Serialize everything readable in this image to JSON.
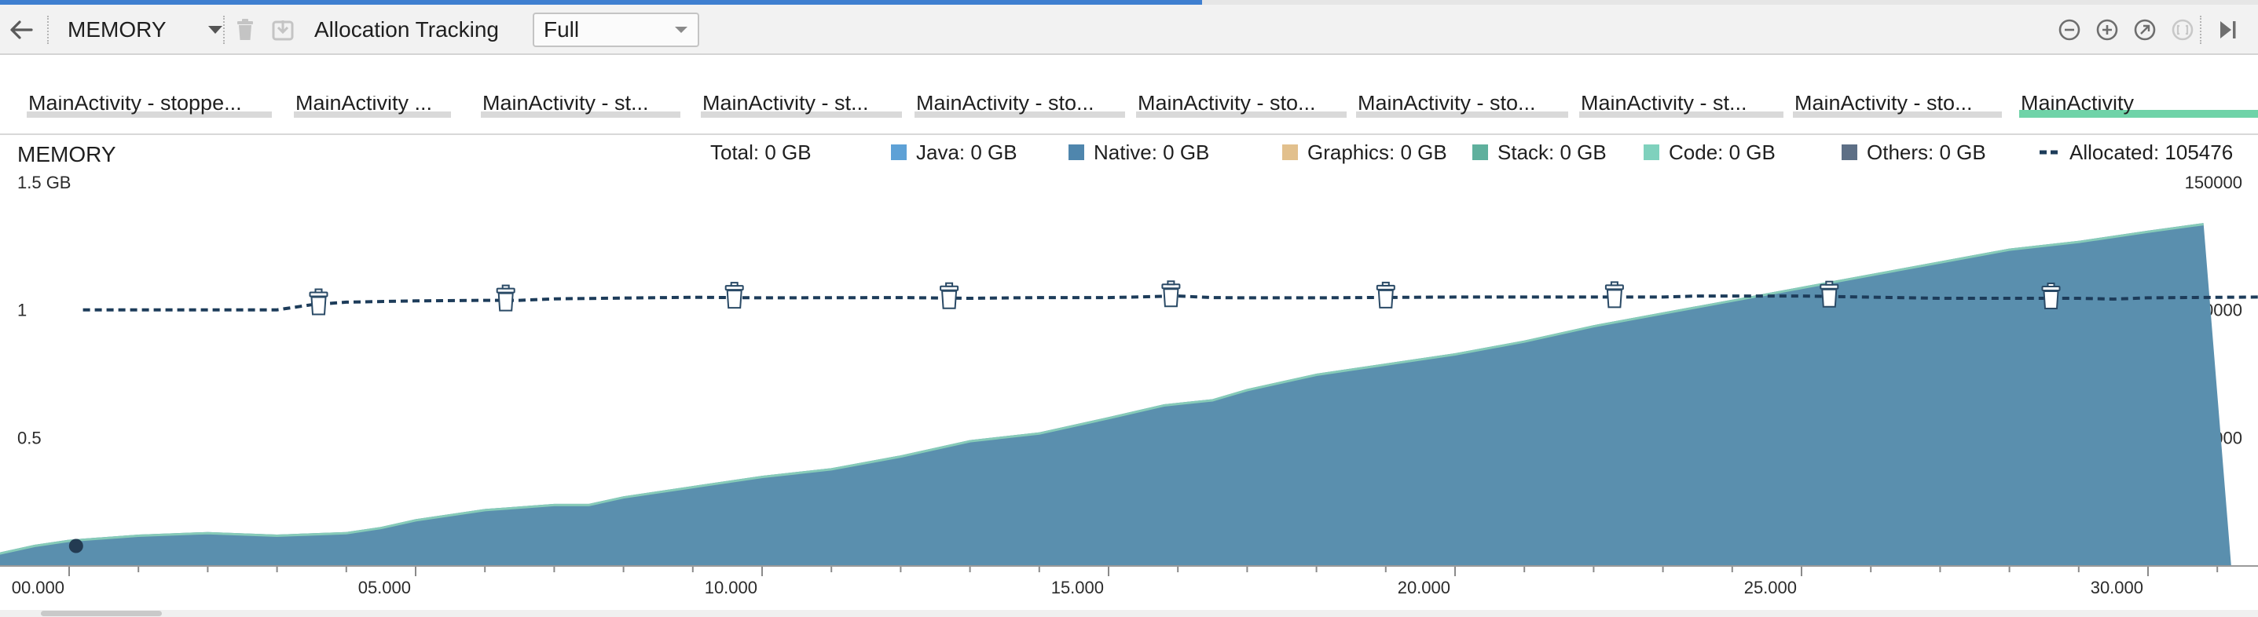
{
  "toolbar": {
    "profiler_label": "MEMORY",
    "allocation_label": "Allocation Tracking",
    "allocation_value": "Full"
  },
  "events": [
    "MainActivity - stoppe...",
    "MainActivity ...",
    "MainActivity - st...",
    "MainActivity - st...",
    "MainActivity - sto...",
    "MainActivity - sto...",
    "MainActivity - sto...",
    "MainActivity - st...",
    "MainActivity - sto...",
    "MainActivity"
  ],
  "colors": {
    "java": "#5ea1d6",
    "native": "#4f86ad",
    "graphics": "#e2c08d",
    "stack": "#5fb09d",
    "code": "#7fd1bd",
    "others": "#5d6f86",
    "allocated": "#1d3c5a",
    "area_fill": "#5a8fae",
    "area_edge": "#86cbb8"
  },
  "chart_data": {
    "type": "area",
    "title": "MEMORY",
    "legend": [
      {
        "name": "Total",
        "text": "Total: 0 GB",
        "icon": "none"
      },
      {
        "name": "Java",
        "text": "Java: 0 GB",
        "icon": "java"
      },
      {
        "name": "Native",
        "text": "Native: 0 GB",
        "icon": "native"
      },
      {
        "name": "Graphics",
        "text": "Graphics: 0 GB",
        "icon": "graphics"
      },
      {
        "name": "Stack",
        "text": "Stack: 0 GB",
        "icon": "stack"
      },
      {
        "name": "Code",
        "text": "Code: 0 GB",
        "icon": "code"
      },
      {
        "name": "Others",
        "text": "Others: 0 GB",
        "icon": "others"
      },
      {
        "name": "Allocated",
        "text": "Allocated: 105476",
        "icon": "dash"
      }
    ],
    "legend_placement": "top",
    "xlim": [
      -1.0,
      32.0
    ],
    "x_ticks": [
      "00.000",
      "05.000",
      "10.000",
      "15.000",
      "20.000",
      "25.000",
      "30.000"
    ],
    "x_tick_values": [
      0,
      5,
      10,
      15,
      20,
      25,
      30
    ],
    "y_left": {
      "ylim": [
        0,
        1.5
      ],
      "ticks": [
        {
          "value": 1.5,
          "label": "1.5 GB"
        },
        {
          "value": 1.0,
          "label": "1"
        },
        {
          "value": 0.5,
          "label": "0.5"
        }
      ]
    },
    "y_right": {
      "ylim": [
        0,
        150000
      ],
      "ticks": [
        {
          "value": 150000,
          "label": "150000"
        },
        {
          "value": 100000,
          "label": "100000"
        },
        {
          "value": 50000,
          "label": "50000"
        }
      ]
    },
    "grid": false,
    "series": [
      {
        "name": "Native",
        "axis": "left",
        "x": [
          -1.0,
          -0.5,
          0.0,
          1.0,
          2.0,
          3.0,
          4.0,
          4.5,
          5.0,
          6.0,
          7.0,
          7.5,
          8.0,
          9.0,
          10.0,
          11.0,
          12.0,
          13.0,
          14.0,
          15.0,
          15.8,
          16.5,
          17.0,
          18.0,
          19.0,
          20.0,
          21.0,
          22.0,
          23.0,
          24.0,
          25.0,
          26.0,
          27.0,
          28.0,
          29.0,
          30.0,
          30.8,
          31.2
        ],
        "y": [
          0.05,
          0.08,
          0.1,
          0.12,
          0.13,
          0.12,
          0.13,
          0.15,
          0.18,
          0.22,
          0.24,
          0.24,
          0.27,
          0.31,
          0.35,
          0.38,
          0.43,
          0.49,
          0.52,
          0.58,
          0.63,
          0.65,
          0.69,
          0.75,
          0.79,
          0.83,
          0.88,
          0.94,
          0.99,
          1.04,
          1.09,
          1.14,
          1.19,
          1.24,
          1.27,
          1.31,
          1.34,
          0.0
        ]
      },
      {
        "name": "Allocated",
        "axis": "right",
        "style": "dashed",
        "x": [
          0.2,
          3.0,
          3.5,
          4.0,
          5.0,
          6.0,
          6.5,
          7.0,
          8.0,
          9.0,
          10.0,
          12.0,
          13.0,
          14.0,
          15.0,
          16.0,
          16.5,
          17.0,
          18.0,
          20.0,
          22.0,
          23.0,
          23.5,
          25.0,
          27.0,
          29.0,
          29.5,
          30.0,
          32.0
        ],
        "y": [
          100000,
          100000,
          102000,
          103000,
          103500,
          103700,
          103700,
          104300,
          104600,
          104900,
          104700,
          104800,
          104500,
          104800,
          104800,
          105400,
          104800,
          104700,
          104700,
          105000,
          105000,
          105000,
          105400,
          105400,
          104500,
          104500,
          104200,
          104700,
          105000
        ]
      }
    ],
    "gc_events_x": [
      3.6,
      6.3,
      9.6,
      12.7,
      15.9,
      19.0,
      22.3,
      25.4,
      28.6
    ],
    "marker_x": 0.1
  }
}
